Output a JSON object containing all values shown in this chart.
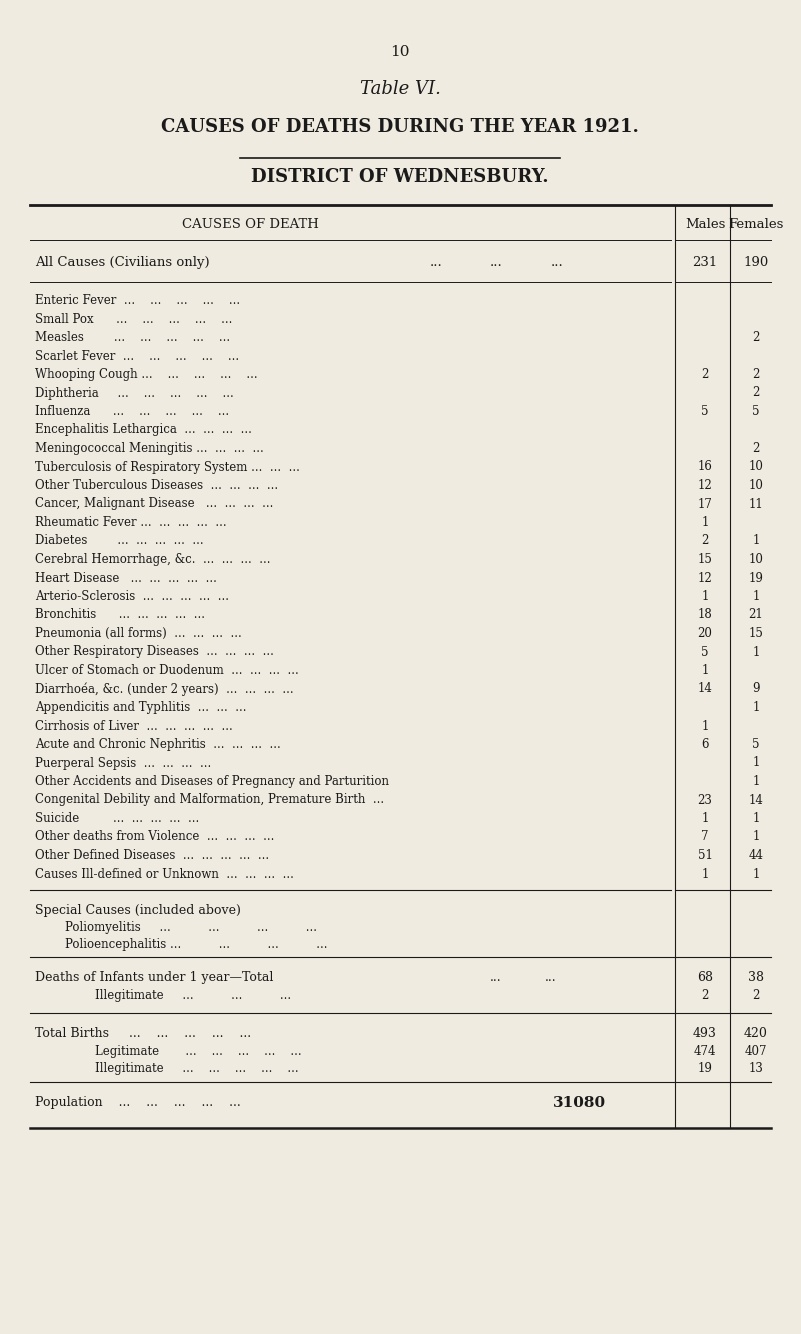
{
  "page_number": "10",
  "title_line1": "Table VI.",
  "title_line2": "CAUSES OF DEATHS DURING THE YEAR 1921.",
  "title_line3": "DISTRICT OF WEDNESBURY.",
  "bg_color": "#f0ebe0",
  "text_color": "#1a1a1a",
  "col_header": "CAUSES OF DEATH",
  "col_males": "Males",
  "col_females": "Females",
  "rows_data": [
    [
      "Enteric Fever  ...    ...    ...    ...    ...",
      "",
      ""
    ],
    [
      "Small Pox      ...    ...    ...    ...    ...",
      "",
      ""
    ],
    [
      "Measles        ...    ...    ...    ...    ...",
      "",
      "2"
    ],
    [
      "Scarlet Fever  ...    ...    ...    ...    ...",
      "",
      ""
    ],
    [
      "Whooping Cough ...    ...    ...    ...    ...",
      "2",
      "2"
    ],
    [
      "Diphtheria     ...    ...    ...    ...    ...",
      "",
      "2"
    ],
    [
      "Influenza      ...    ...    ...    ...    ...",
      "5",
      "5"
    ],
    [
      "Encephalitis Lethargica  ...  ...  ...  ...",
      "",
      ""
    ],
    [
      "Meningococcal Meningitis ...  ...  ...  ...",
      "",
      "2"
    ],
    [
      "Tuberculosis of Respiratory System ...  ...  ...",
      "16",
      "10"
    ],
    [
      "Other Tuberculous Diseases  ...  ...  ...  ...",
      "12",
      "10"
    ],
    [
      "Cancer, Malignant Disease   ...  ...  ...  ...",
      "17",
      "11"
    ],
    [
      "Rheumatic Fever ...  ...  ...  ...  ...",
      "1",
      ""
    ],
    [
      "Diabetes        ...  ...  ...  ...  ...",
      "2",
      "1"
    ],
    [
      "Cerebral Hemorrhage, &c.  ...  ...  ...  ...",
      "15",
      "10"
    ],
    [
      "Heart Disease   ...  ...  ...  ...  ...",
      "12",
      "19"
    ],
    [
      "Arterio-Sclerosis  ...  ...  ...  ...  ...",
      "1",
      "1"
    ],
    [
      "Bronchitis      ...  ...  ...  ...  ...",
      "18",
      "21"
    ],
    [
      "Pneumonia (all forms)  ...  ...  ...  ...",
      "20",
      "15"
    ],
    [
      "Other Respiratory Diseases  ...  ...  ...  ...",
      "5",
      "1"
    ],
    [
      "Ulcer of Stomach or Duodenum  ...  ...  ...  ...",
      "1",
      ""
    ],
    [
      "Diarrhoéa, &c. (under 2 years)  ...  ...  ...  ...",
      "14",
      "9"
    ],
    [
      "Appendicitis and Typhlitis  ...  ...  ...",
      "",
      "1"
    ],
    [
      "Cirrhosis of Liver  ...  ...  ...  ...  ...",
      "1",
      ""
    ],
    [
      "Acute and Chronic Nephritis  ...  ...  ...  ...",
      "6",
      "5"
    ],
    [
      "Puerperal Sepsis  ...  ...  ...  ...",
      "",
      "1"
    ],
    [
      "Other Accidents and Diseases of Pregnancy and Parturition",
      "",
      "1"
    ],
    [
      "Congenital Debility and Malformation, Premature Birth  ...",
      "23",
      "14"
    ],
    [
      "Suicide         ...  ...  ...  ...  ...",
      "1",
      "1"
    ],
    [
      "Other deaths from Violence  ...  ...  ...  ...",
      "7",
      "1"
    ],
    [
      "Other Defined Diseases  ...  ...  ...  ...  ...",
      "51",
      "44"
    ],
    [
      "Causes Ill-defined or Unknown  ...  ...  ...  ...",
      "1",
      "1"
    ]
  ],
  "population": "31080"
}
